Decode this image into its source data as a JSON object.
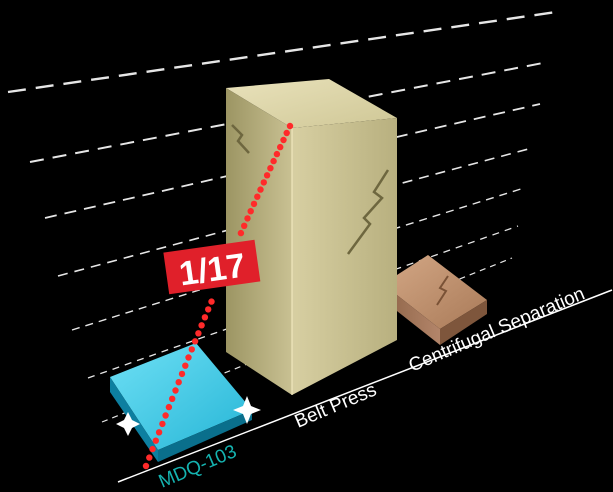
{
  "chart_data": {
    "type": "bar",
    "categories": [
      "MDQ-103",
      "Belt Press",
      "Centrifugal Separation"
    ],
    "values": [
      1,
      17,
      3
    ],
    "ylim": [
      0,
      20
    ],
    "grid": true,
    "legend": "none",
    "annotation": "1/17",
    "colors": {
      "bars": [
        "#1aa7c9",
        "#c8bf8c",
        "#b98a66"
      ],
      "category_labels": [
        "#15b3b0",
        "#ffffff",
        "#ffffff"
      ],
      "annotation_bg": "#e0202a",
      "annotation_dots": "#ff2a2a",
      "grid": "#ffffff"
    }
  }
}
